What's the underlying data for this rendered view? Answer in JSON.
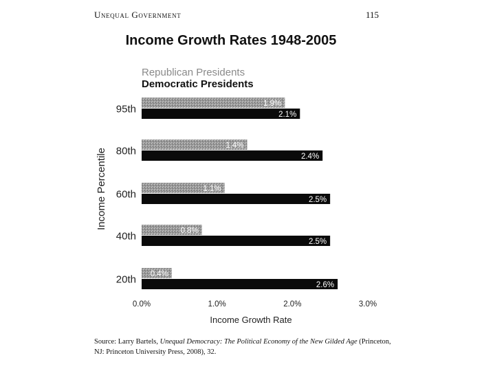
{
  "header": {
    "running_head": "Unequal Government",
    "page_number": "115"
  },
  "source_note": {
    "prefix": "Source: Larry Bartels, ",
    "book": "Unequal Democracy: The Political Economy of the New Gilded Age",
    "suffix": " (Princeton, NJ: Princeton University Press, 2008), 32."
  },
  "colors": {
    "republican": "#9a9a9a",
    "democratic": "#0a0a0a"
  },
  "chart_data": {
    "type": "bar",
    "orientation": "horizontal",
    "title": "Income Growth Rates 1948-2005",
    "xlabel": "Income Growth Rate",
    "ylabel": "Income Percentile",
    "xlim": [
      0,
      3.0
    ],
    "xticks": [
      "0.0%",
      "1.0%",
      "2.0%",
      "3.0%"
    ],
    "categories": [
      "95th",
      "80th",
      "60th",
      "40th",
      "20th"
    ],
    "series": [
      {
        "name": "Republican Presidents",
        "values": [
          1.9,
          1.4,
          1.1,
          0.8,
          0.4
        ],
        "labels": [
          "1.9%",
          "1.4%",
          "1.1%",
          "0.8%",
          "0.4%"
        ]
      },
      {
        "name": "Democratic Presidents",
        "values": [
          2.1,
          2.4,
          2.5,
          2.5,
          2.6
        ],
        "labels": [
          "2.1%",
          "2.4%",
          "2.5%",
          "2.5%",
          "2.6%"
        ]
      }
    ],
    "legend_position": "top-left",
    "grid": false
  }
}
